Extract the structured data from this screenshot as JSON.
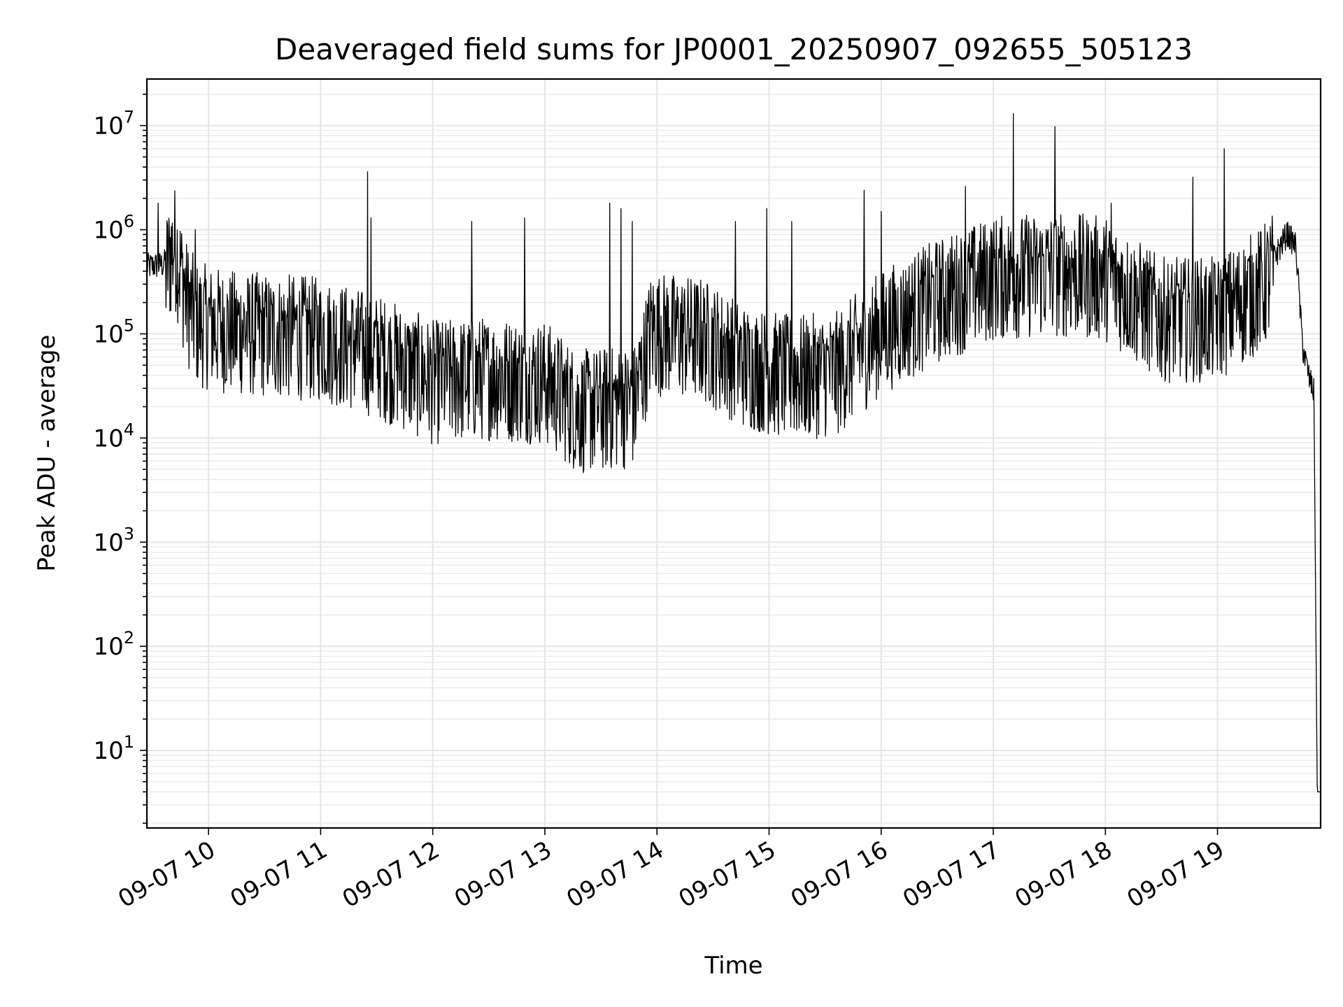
{
  "chart_data": {
    "type": "line",
    "title": "Deaveraged field sums for JP0001_20250907_092655_505123",
    "xlabel": "Time",
    "ylabel": "Peak ADU - average",
    "yscale": "log",
    "ylim": [
      1.8,
      28000000
    ],
    "xlim_hours": [
      9.45,
      19.92
    ],
    "grid": true,
    "x_ticks": [
      {
        "value": 10,
        "label": "09-07 10"
      },
      {
        "value": 11,
        "label": "09-07 11"
      },
      {
        "value": 12,
        "label": "09-07 12"
      },
      {
        "value": 13,
        "label": "09-07 13"
      },
      {
        "value": 14,
        "label": "09-07 14"
      },
      {
        "value": 15,
        "label": "09-07 15"
      },
      {
        "value": 16,
        "label": "09-07 16"
      },
      {
        "value": 17,
        "label": "09-07 17"
      },
      {
        "value": 18,
        "label": "09-07 18"
      },
      {
        "value": 19,
        "label": "09-07 19"
      }
    ],
    "y_ticks": [
      {
        "value": 10,
        "base": "10",
        "exp": "1"
      },
      {
        "value": 100,
        "base": "10",
        "exp": "2"
      },
      {
        "value": 1000,
        "base": "10",
        "exp": "3"
      },
      {
        "value": 10000,
        "base": "10",
        "exp": "4"
      },
      {
        "value": 100000,
        "base": "10",
        "exp": "5"
      },
      {
        "value": 1000000,
        "base": "10",
        "exp": "6"
      },
      {
        "value": 10000000,
        "base": "10",
        "exp": "7"
      }
    ],
    "series": [
      {
        "name": "Peak ADU - average",
        "color": "#000000",
        "baseline_hours": [
          9.45,
          9.6,
          9.7,
          9.8,
          9.9,
          10.2,
          10.6,
          11.0,
          11.5,
          12.0,
          12.5,
          13.0,
          13.3,
          13.6,
          13.8,
          13.95,
          14.4,
          14.8,
          15.2,
          15.6,
          16.0,
          16.5,
          17.0,
          17.5,
          18.0,
          18.5,
          19.0,
          19.4,
          19.55,
          19.62,
          19.7,
          19.76,
          19.82,
          19.86,
          19.89,
          19.92
        ],
        "baseline_values": [
          480000,
          500000,
          1000000,
          300000,
          180000,
          150000,
          140000,
          130000,
          90000,
          50000,
          55000,
          50000,
          26000,
          28000,
          30000,
          150000,
          130000,
          70000,
          55000,
          60000,
          150000,
          300000,
          500000,
          550000,
          500000,
          200000,
          200000,
          400000,
          700000,
          1000000,
          750000,
          80000,
          40000,
          30000,
          4,
          4
        ],
        "noise_decades": 0.55,
        "spikes": [
          {
            "hour": 9.55,
            "value": 1800000
          },
          {
            "hour": 9.88,
            "value": 1000000
          },
          {
            "hour": 11.42,
            "value": 3600000
          },
          {
            "hour": 11.45,
            "value": 1300000
          },
          {
            "hour": 12.35,
            "value": 1200000
          },
          {
            "hour": 12.82,
            "value": 1300000
          },
          {
            "hour": 13.58,
            "value": 1800000
          },
          {
            "hour": 13.68,
            "value": 1600000
          },
          {
            "hour": 13.78,
            "value": 1200000
          },
          {
            "hour": 14.7,
            "value": 1200000
          },
          {
            "hour": 14.98,
            "value": 1600000
          },
          {
            "hour": 15.2,
            "value": 1200000
          },
          {
            "hour": 15.85,
            "value": 2400000
          },
          {
            "hour": 16.0,
            "value": 1500000
          },
          {
            "hour": 16.75,
            "value": 2600000
          },
          {
            "hour": 17.18,
            "value": 13000000
          },
          {
            "hour": 17.55,
            "value": 9800000
          },
          {
            "hour": 18.05,
            "value": 1800000
          },
          {
            "hour": 18.78,
            "value": 3200000
          },
          {
            "hour": 19.06,
            "value": 6000000
          }
        ]
      }
    ]
  }
}
